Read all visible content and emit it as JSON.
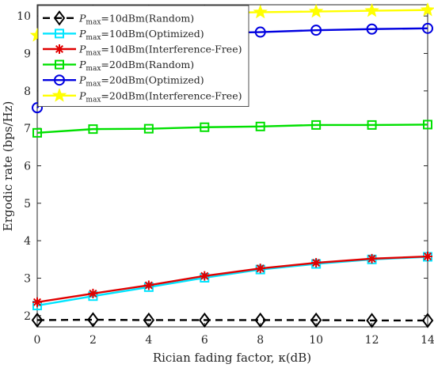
{
  "chart_data": {
    "type": "line",
    "xlabel": "Rician fading factor, κ(dB)",
    "ylabel": "Ergodic rate (bps/Hz)",
    "xlim": [
      0,
      14
    ],
    "ylim": [
      1.7,
      10.3
    ],
    "xticks": [
      0,
      2,
      4,
      6,
      8,
      10,
      12,
      14
    ],
    "yticks": [
      2,
      3,
      4,
      5,
      6,
      7,
      8,
      9,
      10
    ],
    "grid": false,
    "legend_position": "top-left",
    "x": [
      0,
      2,
      4,
      6,
      8,
      10,
      12,
      14
    ],
    "series": [
      {
        "name": "P_max=10dBm(Random)",
        "legend": {
          "sym": "P",
          "sub": "max",
          "rest": "=10dBm(Random)"
        },
        "color": "#000000",
        "marker": "diamond",
        "dash": true,
        "values": [
          1.88,
          1.89,
          1.88,
          1.88,
          1.88,
          1.88,
          1.87,
          1.87
        ]
      },
      {
        "name": "P_max=10dBm(Optimized)",
        "legend": {
          "sym": "P",
          "sub": "max",
          "rest": "=10dBm(Optimized)"
        },
        "color": "#00e5ff",
        "marker": "square",
        "dash": false,
        "values": [
          2.27,
          2.52,
          2.76,
          3.01,
          3.23,
          3.38,
          3.5,
          3.57
        ]
      },
      {
        "name": "P_max=10dBm(Interference-Free)",
        "legend": {
          "sym": "P",
          "sub": "max",
          "rest": "=10dBm(Interference-Free)"
        },
        "color": "#e00000",
        "marker": "asterisk",
        "dash": false,
        "values": [
          2.36,
          2.59,
          2.81,
          3.06,
          3.26,
          3.41,
          3.52,
          3.58
        ]
      },
      {
        "name": "P_max=20dBm(Random)",
        "legend": {
          "sym": "P",
          "sub": "max",
          "rest": "=20dBm(Random)"
        },
        "color": "#00e000",
        "marker": "square",
        "dash": false,
        "values": [
          6.88,
          6.98,
          6.99,
          7.03,
          7.05,
          7.09,
          7.09,
          7.1
        ]
      },
      {
        "name": "P_max=20dBm(Optimized)",
        "legend": {
          "sym": "P",
          "sub": "max",
          "rest": "=20dBm(Optimized)"
        },
        "color": "#0000e0",
        "marker": "circle",
        "dash": false,
        "values": [
          7.55,
          9.42,
          9.5,
          9.54,
          9.57,
          9.62,
          9.65,
          9.67
        ]
      },
      {
        "name": "P_max=20dBm(Interference-Free)",
        "legend": {
          "sym": "P",
          "sub": "max",
          "rest": "=20dBm(Interference-Free)"
        },
        "color": "#ffff00",
        "marker": "star",
        "dash": false,
        "values": [
          9.48,
          9.8,
          10.0,
          10.08,
          10.1,
          10.12,
          10.14,
          10.16
        ]
      }
    ]
  }
}
